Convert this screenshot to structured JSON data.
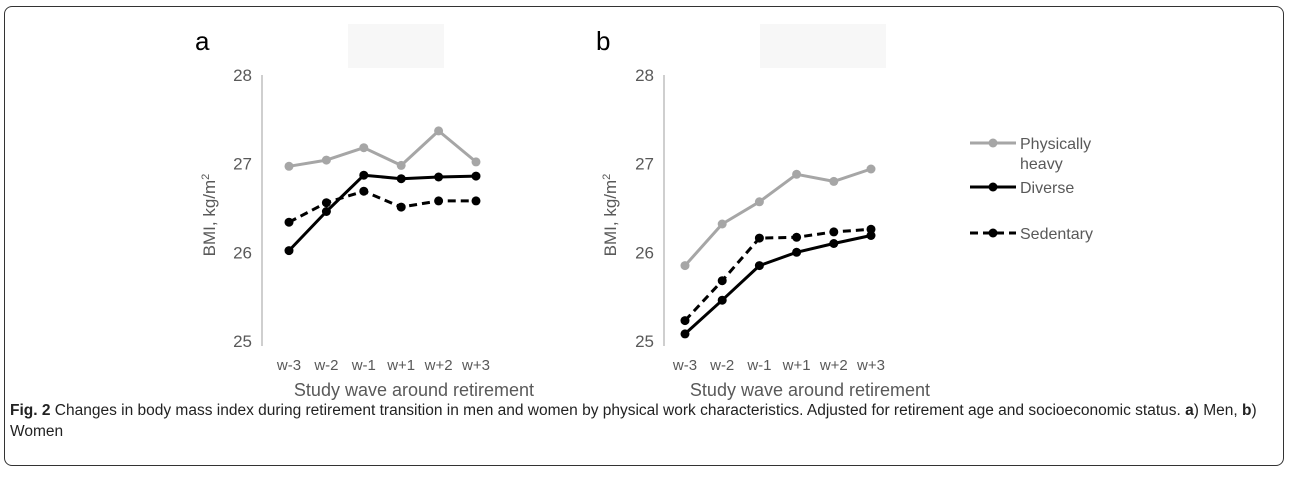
{
  "figure": {
    "caption_label": "Fig. 2",
    "caption_text_1": " Changes in body mass index during retirement transition in men and women by physical work characteristics. Adjusted for retirement age and socioeconomic status. ",
    "caption_a": "a",
    "caption_text_2": ") Men, ",
    "caption_b": "b",
    "caption_text_3": ") Women"
  },
  "legend": {
    "items": [
      {
        "line1": "Physically",
        "line2": "heavy",
        "color": "#a6a6a6",
        "style": "solid"
      },
      {
        "line1": "Diverse",
        "line2": "",
        "color": "#000000",
        "style": "solid"
      },
      {
        "line1": "Sedentary",
        "line2": "",
        "color": "#000000",
        "style": "dashed"
      }
    ]
  },
  "chart_data": [
    {
      "type": "line",
      "panel": "a",
      "title": "",
      "xlabel": "Study wave around retirement",
      "ylabel": "BMI, kg/m",
      "ylabel_sup": "2",
      "categories": [
        "w-3",
        "w-2",
        "w-1",
        "w+1",
        "w+2",
        "w+3"
      ],
      "ylim": [
        25,
        28
      ],
      "yticks": [
        "25",
        "26",
        "27",
        "28"
      ],
      "series": [
        {
          "name": "Physically heavy",
          "color": "#a6a6a6",
          "dashed": false,
          "values": [
            26.97,
            27.04,
            27.18,
            26.98,
            27.37,
            27.02
          ]
        },
        {
          "name": "Diverse",
          "color": "#000000",
          "dashed": false,
          "values": [
            26.02,
            26.46,
            26.87,
            26.83,
            26.85,
            26.86
          ]
        },
        {
          "name": "Sedentary",
          "color": "#000000",
          "dashed": true,
          "values": [
            26.34,
            26.56,
            26.69,
            26.51,
            26.58,
            26.58
          ]
        }
      ]
    },
    {
      "type": "line",
      "panel": "b",
      "title": "",
      "xlabel": "Study wave around retirement",
      "ylabel": "BMI, kg/m",
      "ylabel_sup": "2",
      "categories": [
        "w-3",
        "w-2",
        "w-1",
        "w+1",
        "w+2",
        "w+3"
      ],
      "ylim": [
        25,
        28
      ],
      "yticks": [
        "25",
        "26",
        "27",
        "28"
      ],
      "series": [
        {
          "name": "Physically heavy",
          "color": "#a6a6a6",
          "dashed": false,
          "values": [
            25.85,
            26.32,
            26.57,
            26.88,
            26.8,
            26.94
          ]
        },
        {
          "name": "Diverse",
          "color": "#000000",
          "dashed": false,
          "values": [
            25.08,
            25.46,
            25.85,
            26.0,
            26.1,
            26.19
          ]
        },
        {
          "name": "Sedentary",
          "color": "#000000",
          "dashed": true,
          "values": [
            25.23,
            25.68,
            26.16,
            26.17,
            26.23,
            26.26
          ]
        }
      ]
    }
  ]
}
